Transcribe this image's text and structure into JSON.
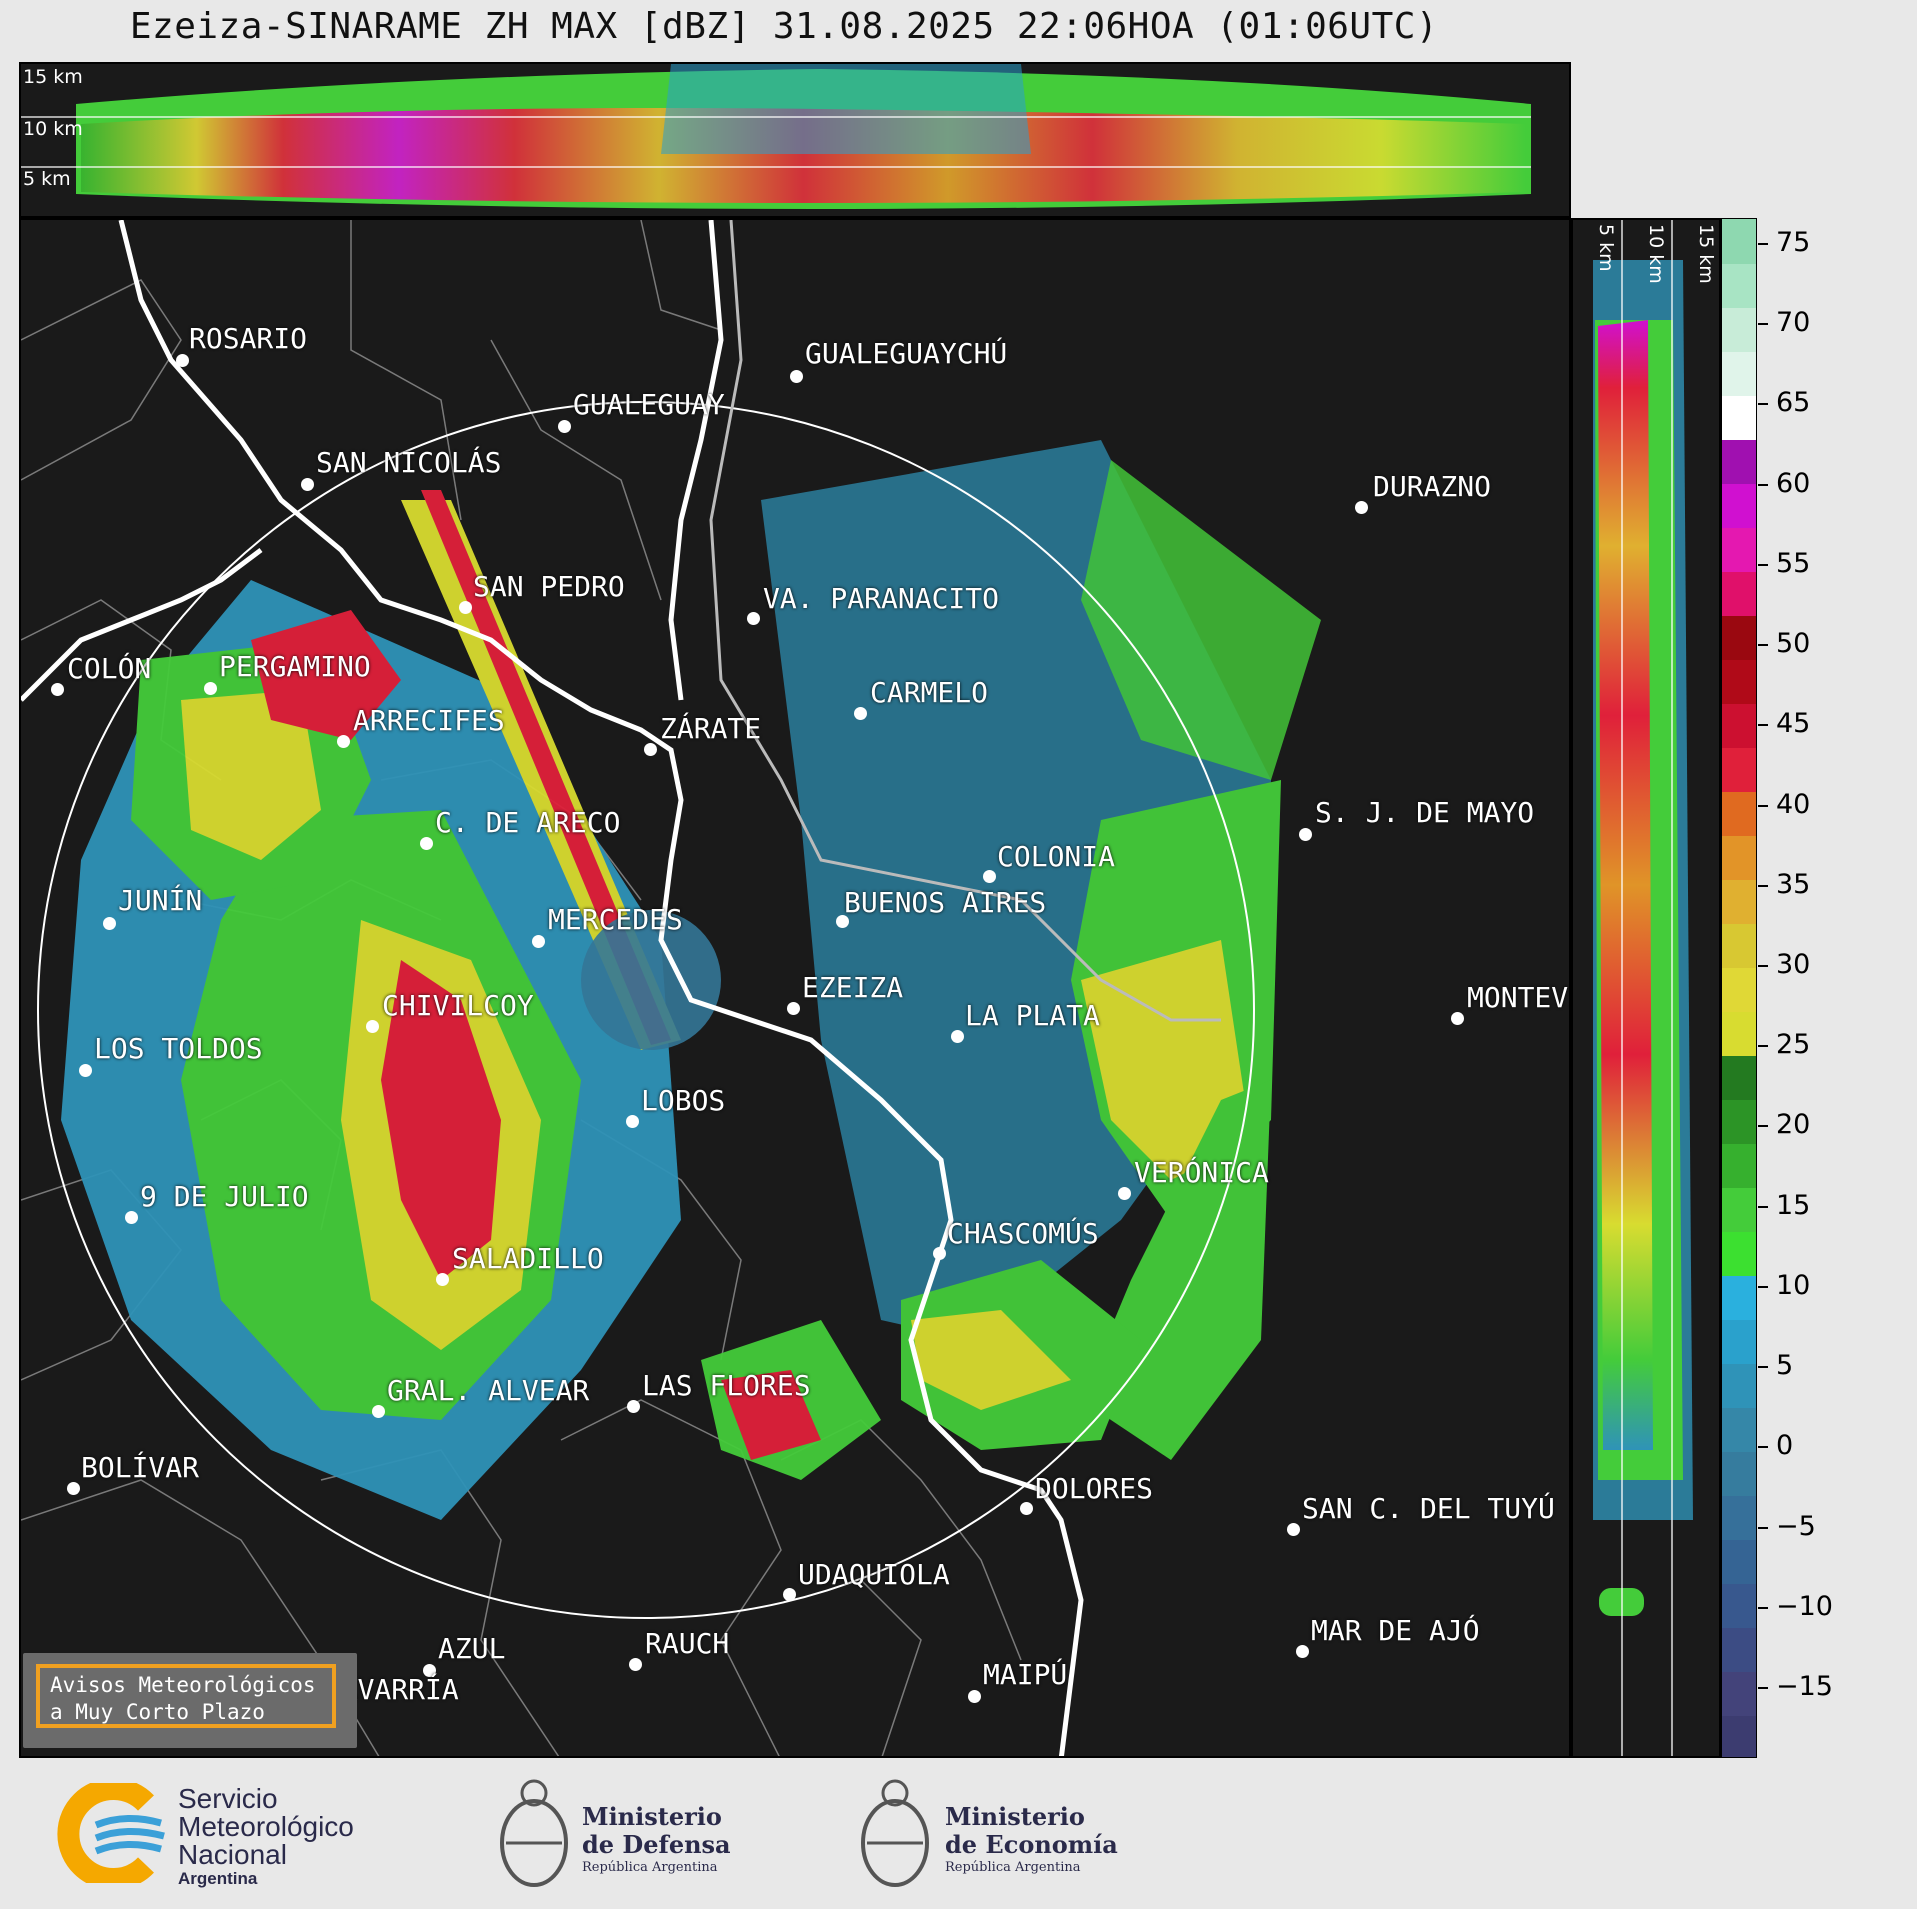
{
  "title": "Ezeiza-SINARAME ZH MAX [dBZ] 31.08.2025 22:06HOA (01:06UTC)",
  "height_labels": [
    "15 km",
    "10 km",
    "5 km"
  ],
  "cities": [
    {
      "name": "ROSARIO"
    },
    {
      "name": "GUALEGUAYCHÚ"
    },
    {
      "name": "GUALEGUAY"
    },
    {
      "name": "SAN NICOLÁS"
    },
    {
      "name": "DURAZNO"
    },
    {
      "name": "SAN PEDRO"
    },
    {
      "name": "VA. PARANACITO"
    },
    {
      "name": "COLÓN"
    },
    {
      "name": "PERGAMINO"
    },
    {
      "name": "CARMELO"
    },
    {
      "name": "ARRECIFES"
    },
    {
      "name": "ZÁRATE"
    },
    {
      "name": "S. J. DE MAYO"
    },
    {
      "name": "C. DE ARECO"
    },
    {
      "name": "COLONIA"
    },
    {
      "name": "JUNÍN"
    },
    {
      "name": "BUENOS AIRES"
    },
    {
      "name": "MERCEDES"
    },
    {
      "name": "MONTEVIDEO"
    },
    {
      "name": "CHIVILCOY"
    },
    {
      "name": "EZEIZA"
    },
    {
      "name": "LA PLATA"
    },
    {
      "name": "LOS TOLDOS"
    },
    {
      "name": "LOBOS"
    },
    {
      "name": "VERÓNICA"
    },
    {
      "name": "9 DE JULIO"
    },
    {
      "name": "CHASCOMÚS"
    },
    {
      "name": "SALADILLO"
    },
    {
      "name": "GRAL. ALVEAR"
    },
    {
      "name": "LAS FLORES"
    },
    {
      "name": "BOLÍVAR"
    },
    {
      "name": "DOLORES"
    },
    {
      "name": "SAN C. DEL TUYÚ"
    },
    {
      "name": "UDAQUIOLA"
    },
    {
      "name": "MAR DE AJÓ"
    },
    {
      "name": "RAUCH"
    },
    {
      "name": "AZUL"
    },
    {
      "name": "MAIPÚ"
    },
    {
      "name": "OLAVARRÍA"
    }
  ],
  "colorbar": {
    "ticks": [
      "75",
      "70",
      "65",
      "60",
      "55",
      "50",
      "45",
      "40",
      "35",
      "30",
      "25",
      "20",
      "15",
      "10",
      "5",
      "0",
      "−5",
      "−10",
      "−15"
    ],
    "colors": [
      "#3c3c70",
      "#43437a",
      "#3c4c84",
      "#38588e",
      "#356494",
      "#36709a",
      "#367c9e",
      "#3587a8",
      "#2f93b8",
      "#2aa1cc",
      "#2ab0de",
      "#3ce030",
      "#44cc3a",
      "#36b02e",
      "#2c9426",
      "#237a20",
      "#d8dc30",
      "#e0d836",
      "#d8c832",
      "#e0b030",
      "#e29428",
      "#e06a20",
      "#e0203a",
      "#cc1030",
      "#b00a18",
      "#9a0810",
      "#e0106a",
      "#e418b0",
      "#d010d0",
      "#a010b0",
      "#ffffff",
      "#e0f4ea",
      "#c8ecd8",
      "#a8e4c4",
      "#8ed8b0"
    ]
  },
  "notice": {
    "line1": "Avisos Meteorológicos",
    "line2": "a Muy Corto Plazo"
  },
  "logos": {
    "smn": {
      "line1": "Servicio",
      "line2": "Meteorológico",
      "line3": "Nacional",
      "line4": "Argentina"
    },
    "defensa": {
      "line1": "Ministerio",
      "line2": "de Defensa",
      "line3": "República Argentina"
    },
    "economia": {
      "line1": "Ministerio",
      "line2": "de Economía",
      "line3": "República Argentina"
    }
  }
}
